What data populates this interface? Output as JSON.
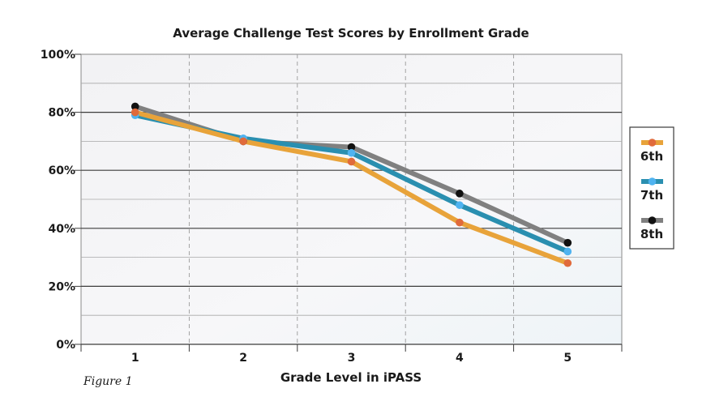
{
  "chart_data": {
    "type": "line",
    "title": "Average Challenge Test Scores by Enrollment Grade",
    "xlabel": "Grade Level in iPASS",
    "ylabel": "",
    "categories": [
      "1",
      "2",
      "3",
      "4",
      "5"
    ],
    "y_ticks": [
      "0%",
      "20%",
      "40%",
      "60%",
      "80%",
      "100%"
    ],
    "ylim": [
      0,
      100
    ],
    "grid": true,
    "legend_position": "right",
    "series": [
      {
        "name": "6th",
        "values": [
          80,
          70,
          63,
          42,
          28
        ],
        "line_color": "#e8a33a",
        "marker_color": "#e06a3b"
      },
      {
        "name": "7th",
        "values": [
          79,
          71,
          66,
          48,
          32
        ],
        "line_color": "#2a8fb0",
        "marker_color": "#4fb3f0"
      },
      {
        "name": "8th",
        "values": [
          82,
          70,
          68,
          52,
          35
        ],
        "line_color": "#808080",
        "marker_color": "#111111"
      }
    ]
  },
  "caption": "Figure 1"
}
